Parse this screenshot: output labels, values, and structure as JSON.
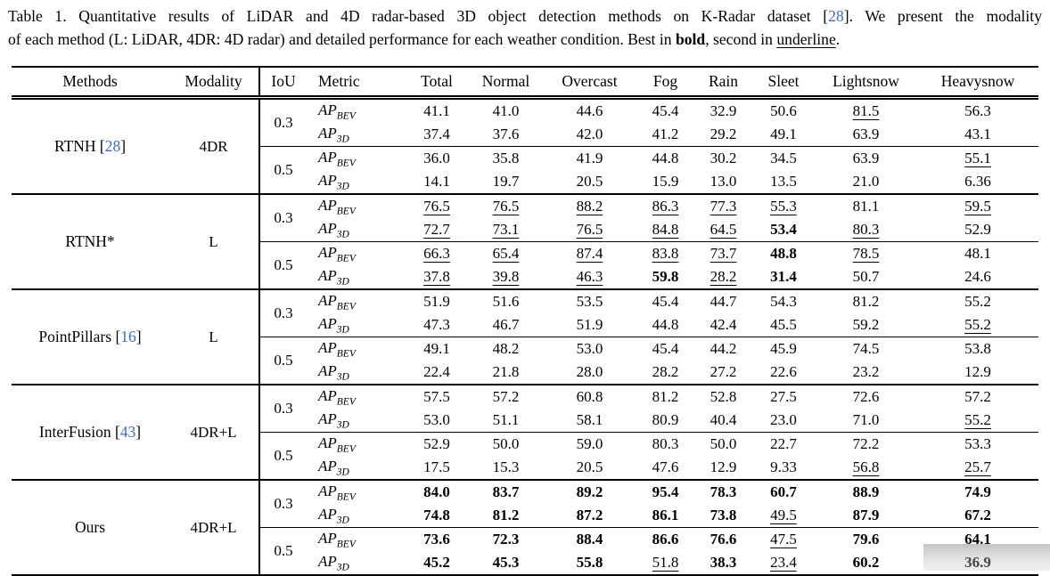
{
  "colors": {
    "cite": "#3c6db4",
    "artifact_gray": "#b5b5b5",
    "text": "#000000"
  },
  "caption": {
    "lines": [
      [
        {
          "t": "Table 1. Quantitative results of LiDAR and 4D radar-based 3D object detection methods on K-Radar dataset ["
        },
        {
          "t": "28",
          "s": "cite"
        },
        {
          "t": "]. We present the modality"
        }
      ],
      [
        {
          "t": "of each method (L: LiDAR, 4DR: 4D radar) and detailed performance for each weather condition. Best in "
        },
        {
          "t": "bold",
          "s": "b"
        },
        {
          "t": ", second in "
        },
        {
          "t": "underline",
          "s": "u"
        },
        {
          "t": "."
        }
      ]
    ]
  },
  "table": {
    "columns": [
      "Methods",
      "Modality",
      "IoU",
      "Metric",
      "Total",
      "Normal",
      "Overcast",
      "Fog",
      "Rain",
      "Sleet",
      "Lightsnow",
      "Heavysnow"
    ],
    "groups": [
      {
        "method": {
          "name": "RTNH",
          "cite": "28"
        },
        "modality": "4DR",
        "blocks": [
          {
            "iou": "0.3",
            "rows": [
              {
                "metric": {
                  "base": "AP",
                  "sub": "BEV"
                },
                "values": [
                  "41.1",
                  "41.0",
                  "44.6",
                  "45.4",
                  "32.9",
                  "50.6",
                  "81.5",
                  "56.3"
                ],
                "styles": [
                  "",
                  "",
                  "",
                  "",
                  "",
                  "",
                  "u",
                  ""
                ]
              },
              {
                "metric": {
                  "base": "AP",
                  "sub": "3D"
                },
                "values": [
                  "37.4",
                  "37.6",
                  "42.0",
                  "41.2",
                  "29.2",
                  "49.1",
                  "63.9",
                  "43.1"
                ],
                "styles": [
                  "",
                  "",
                  "",
                  "",
                  "",
                  "",
                  "",
                  ""
                ]
              }
            ]
          },
          {
            "iou": "0.5",
            "rows": [
              {
                "metric": {
                  "base": "AP",
                  "sub": "BEV"
                },
                "values": [
                  "36.0",
                  "35.8",
                  "41.9",
                  "44.8",
                  "30.2",
                  "34.5",
                  "63.9",
                  "55.1"
                ],
                "styles": [
                  "",
                  "",
                  "",
                  "",
                  "",
                  "",
                  "",
                  "u"
                ]
              },
              {
                "metric": {
                  "base": "AP",
                  "sub": "3D"
                },
                "values": [
                  "14.1",
                  "19.7",
                  "20.5",
                  "15.9",
                  "13.0",
                  "13.5",
                  "21.0",
                  "6.36"
                ],
                "styles": [
                  "",
                  "",
                  "",
                  "",
                  "",
                  "",
                  "",
                  ""
                ]
              }
            ]
          }
        ]
      },
      {
        "method": {
          "name": "RTNH*",
          "cite": null
        },
        "modality": "L",
        "blocks": [
          {
            "iou": "0.3",
            "rows": [
              {
                "metric": {
                  "base": "AP",
                  "sub": "BEV"
                },
                "values": [
                  "76.5",
                  "76.5",
                  "88.2",
                  "86.3",
                  "77.3",
                  "55.3",
                  "81.1",
                  "59.5"
                ],
                "styles": [
                  "u",
                  "u",
                  "u",
                  "u",
                  "u",
                  "u",
                  "",
                  "u"
                ]
              },
              {
                "metric": {
                  "base": "AP",
                  "sub": "3D"
                },
                "values": [
                  "72.7",
                  "73.1",
                  "76.5",
                  "84.8",
                  "64.5",
                  "53.4",
                  "80.3",
                  "52.9"
                ],
                "styles": [
                  "u",
                  "u",
                  "u",
                  "u",
                  "u",
                  "b",
                  "u",
                  ""
                ]
              }
            ]
          },
          {
            "iou": "0.5",
            "rows": [
              {
                "metric": {
                  "base": "AP",
                  "sub": "BEV"
                },
                "values": [
                  "66.3",
                  "65.4",
                  "87.4",
                  "83.8",
                  "73.7",
                  "48.8",
                  "78.5",
                  "48.1"
                ],
                "styles": [
                  "u",
                  "u",
                  "u",
                  "u",
                  "u",
                  "b",
                  "u",
                  ""
                ]
              },
              {
                "metric": {
                  "base": "AP",
                  "sub": "3D"
                },
                "values": [
                  "37.8",
                  "39.8",
                  "46.3",
                  "59.8",
                  "28.2",
                  "31.4",
                  "50.7",
                  "24.6"
                ],
                "styles": [
                  "u",
                  "u",
                  "u",
                  "b",
                  "u",
                  "b",
                  "",
                  ""
                ]
              }
            ]
          }
        ]
      },
      {
        "method": {
          "name": "PointPillars",
          "cite": "16"
        },
        "modality": "L",
        "blocks": [
          {
            "iou": "0.3",
            "rows": [
              {
                "metric": {
                  "base": "AP",
                  "sub": "BEV"
                },
                "values": [
                  "51.9",
                  "51.6",
                  "53.5",
                  "45.4",
                  "44.7",
                  "54.3",
                  "81.2",
                  "55.2"
                ],
                "styles": [
                  "",
                  "",
                  "",
                  "",
                  "",
                  "",
                  "",
                  ""
                ]
              },
              {
                "metric": {
                  "base": "AP",
                  "sub": "3D"
                },
                "values": [
                  "47.3",
                  "46.7",
                  "51.9",
                  "44.8",
                  "42.4",
                  "45.5",
                  "59.2",
                  "55.2"
                ],
                "styles": [
                  "",
                  "",
                  "",
                  "",
                  "",
                  "",
                  "",
                  "u"
                ]
              }
            ]
          },
          {
            "iou": "0.5",
            "rows": [
              {
                "metric": {
                  "base": "AP",
                  "sub": "BEV"
                },
                "values": [
                  "49.1",
                  "48.2",
                  "53.0",
                  "45.4",
                  "44.2",
                  "45.9",
                  "74.5",
                  "53.8"
                ],
                "styles": [
                  "",
                  "",
                  "",
                  "",
                  "",
                  "",
                  "",
                  ""
                ]
              },
              {
                "metric": {
                  "base": "AP",
                  "sub": "3D"
                },
                "values": [
                  "22.4",
                  "21.8",
                  "28.0",
                  "28.2",
                  "27.2",
                  "22.6",
                  "23.2",
                  "12.9"
                ],
                "styles": [
                  "",
                  "",
                  "",
                  "",
                  "",
                  "",
                  "",
                  ""
                ]
              }
            ]
          }
        ]
      },
      {
        "method": {
          "name": "InterFusion",
          "cite": "43"
        },
        "modality": "4DR+L",
        "blocks": [
          {
            "iou": "0.3",
            "rows": [
              {
                "metric": {
                  "base": "AP",
                  "sub": "BEV"
                },
                "values": [
                  "57.5",
                  "57.2",
                  "60.8",
                  "81.2",
                  "52.8",
                  "27.5",
                  "72.6",
                  "57.2"
                ],
                "styles": [
                  "",
                  "",
                  "",
                  "",
                  "",
                  "",
                  "",
                  ""
                ]
              },
              {
                "metric": {
                  "base": "AP",
                  "sub": "3D"
                },
                "values": [
                  "53.0",
                  "51.1",
                  "58.1",
                  "80.9",
                  "40.4",
                  "23.0",
                  "71.0",
                  "55.2"
                ],
                "styles": [
                  "",
                  "",
                  "",
                  "",
                  "",
                  "",
                  "",
                  "u"
                ]
              }
            ]
          },
          {
            "iou": "0.5",
            "rows": [
              {
                "metric": {
                  "base": "AP",
                  "sub": "BEV"
                },
                "values": [
                  "52.9",
                  "50.0",
                  "59.0",
                  "80.3",
                  "50.0",
                  "22.7",
                  "72.2",
                  "53.3"
                ],
                "styles": [
                  "",
                  "",
                  "",
                  "",
                  "",
                  "",
                  "",
                  ""
                ]
              },
              {
                "metric": {
                  "base": "AP",
                  "sub": "3D"
                },
                "values": [
                  "17.5",
                  "15.3",
                  "20.5",
                  "47.6",
                  "12.9",
                  "9.33",
                  "56.8",
                  "25.7"
                ],
                "styles": [
                  "",
                  "",
                  "",
                  "",
                  "",
                  "",
                  "u",
                  "u"
                ]
              }
            ]
          }
        ]
      },
      {
        "method": {
          "name": "Ours",
          "cite": null
        },
        "modality": "4DR+L",
        "blocks": [
          {
            "iou": "0.3",
            "rows": [
              {
                "metric": {
                  "base": "AP",
                  "sub": "BEV"
                },
                "values": [
                  "84.0",
                  "83.7",
                  "89.2",
                  "95.4",
                  "78.3",
                  "60.7",
                  "88.9",
                  "74.9"
                ],
                "styles": [
                  "b",
                  "b",
                  "b",
                  "b",
                  "b",
                  "b",
                  "b",
                  "b"
                ]
              },
              {
                "metric": {
                  "base": "AP",
                  "sub": "3D"
                },
                "values": [
                  "74.8",
                  "81.2",
                  "87.2",
                  "86.1",
                  "73.8",
                  "49.5",
                  "87.9",
                  "67.2"
                ],
                "styles": [
                  "b",
                  "b",
                  "b",
                  "b",
                  "b",
                  "u",
                  "b",
                  "b"
                ]
              }
            ]
          },
          {
            "iou": "0.5",
            "rows": [
              {
                "metric": {
                  "base": "AP",
                  "sub": "BEV"
                },
                "values": [
                  "73.6",
                  "72.3",
                  "88.4",
                  "86.6",
                  "76.6",
                  "47.5",
                  "79.6",
                  "64.1"
                ],
                "styles": [
                  "b",
                  "b",
                  "b",
                  "b",
                  "b",
                  "u",
                  "b",
                  "b"
                ]
              },
              {
                "metric": {
                  "base": "AP",
                  "sub": "3D"
                },
                "values": [
                  "45.2",
                  "45.3",
                  "55.8",
                  "51.8",
                  "38.3",
                  "23.4",
                  "60.2",
                  "36.9"
                ],
                "styles": [
                  "b",
                  "b",
                  "b",
                  "u",
                  "b",
                  "u",
                  "b",
                  "b"
                ]
              }
            ]
          }
        ]
      }
    ]
  }
}
